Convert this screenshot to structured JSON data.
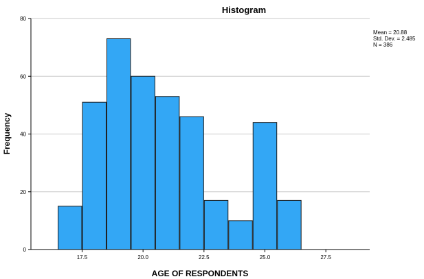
{
  "chart_data": {
    "type": "bar",
    "title": "Histogram",
    "xlabel": "AGE OF RESPONDENTS",
    "ylabel": "Frequency",
    "bin_width": 1,
    "bins": [
      {
        "start": 16.5,
        "end": 17.5,
        "value": 15
      },
      {
        "start": 17.5,
        "end": 18.5,
        "value": 51
      },
      {
        "start": 18.5,
        "end": 19.5,
        "value": 73
      },
      {
        "start": 19.5,
        "end": 20.5,
        "value": 60
      },
      {
        "start": 20.5,
        "end": 21.5,
        "value": 53
      },
      {
        "start": 21.5,
        "end": 22.5,
        "value": 46
      },
      {
        "start": 22.5,
        "end": 23.5,
        "value": 17
      },
      {
        "start": 23.5,
        "end": 24.5,
        "value": 10
      },
      {
        "start": 24.5,
        "end": 25.5,
        "value": 44
      },
      {
        "start": 25.5,
        "end": 26.5,
        "value": 17
      }
    ],
    "xlim": [
      15.4,
      29.3
    ],
    "ylim": [
      0,
      80
    ],
    "x_ticks": [
      17.5,
      20.0,
      22.5,
      25.0,
      27.5
    ],
    "x_tick_labels": [
      "17.5",
      "20.0",
      "22.5",
      "25.0",
      "27.5"
    ],
    "y_ticks": [
      0,
      20,
      40,
      60,
      80
    ],
    "y_tick_labels": [
      "0",
      "20",
      "40",
      "60",
      "80"
    ],
    "grid": true,
    "legend": "none",
    "bar_color": "#33a7f5",
    "stats": {
      "mean_label": "Mean = 20.88",
      "std_label": "Std. Dev. = 2.485",
      "n_label": "N = 386"
    }
  }
}
